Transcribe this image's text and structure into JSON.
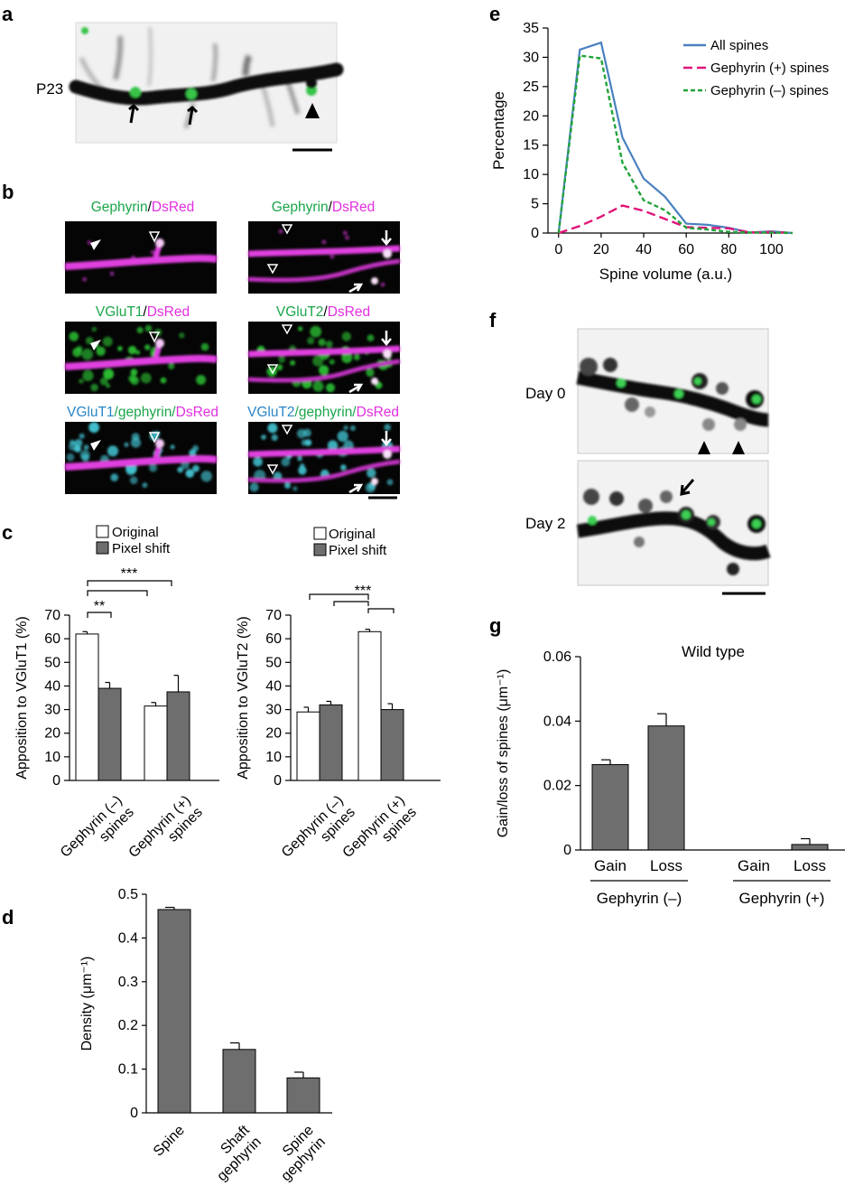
{
  "panels": {
    "a": {
      "letter": "a",
      "label": "P23"
    },
    "b": {
      "letter": "b",
      "rows": [
        [
          "Gephyrin",
          "/",
          "DsRed"
        ],
        [
          "VGluT1",
          "/",
          "DsRed"
        ],
        [
          "VGluT1",
          "/gephyrin/",
          "DsRed"
        ]
      ],
      "rows_right": [
        [
          "Gephyrin",
          "/",
          "DsRed"
        ],
        [
          "VGluT2",
          "/",
          "DsRed"
        ],
        [
          "VGluT2",
          "/gephyrin/",
          "DsRed"
        ]
      ]
    },
    "c": {
      "letter": "c",
      "legend": [
        "Original",
        "Pixel shift"
      ],
      "sig_2": "**",
      "sig_3": "***"
    },
    "d": {
      "letter": "d"
    },
    "e": {
      "letter": "e"
    },
    "f": {
      "letter": "f",
      "labels": [
        "Day 0",
        "Day 2"
      ]
    },
    "g": {
      "letter": "g"
    }
  },
  "colors": {
    "green": "#1aa64a",
    "magenta": "#e22ee0",
    "cyan": "#2a86c8",
    "bar_original": "#ffffff",
    "bar_shift": "#6e6e6e",
    "all_spines": "#4a80c0",
    "geph_pos": "#e0157a",
    "geph_neg": "#22a33a"
  },
  "chart_data": [
    {
      "id": "c-left",
      "type": "bar",
      "ylabel": "Apposition to VGluT1 (%)",
      "ylim": [
        0,
        70
      ],
      "yticks": [
        0,
        10,
        20,
        30,
        40,
        50,
        60,
        70
      ],
      "categories": [
        "Gephyrin (–)\nspines",
        "Gephyrin (+)\nspines"
      ],
      "series": [
        {
          "name": "Original",
          "values": [
            62,
            31.5
          ],
          "errors": [
            1,
            1.5
          ]
        },
        {
          "name": "Pixel shift",
          "values": [
            39,
            37.5
          ],
          "errors": [
            2.5,
            7
          ]
        }
      ]
    },
    {
      "id": "c-right",
      "type": "bar",
      "ylabel": "Apposition to VGluT2 (%)",
      "ylim": [
        0,
        70
      ],
      "yticks": [
        0,
        10,
        20,
        30,
        40,
        50,
        60,
        70
      ],
      "categories": [
        "Gephyrin (–)\nspines",
        "Gephyrin (+)\nspines"
      ],
      "series": [
        {
          "name": "Original",
          "values": [
            29,
            63
          ],
          "errors": [
            2,
            1
          ]
        },
        {
          "name": "Pixel shift",
          "values": [
            32,
            30
          ],
          "errors": [
            1.5,
            2.5
          ]
        }
      ]
    },
    {
      "id": "d",
      "type": "bar",
      "ylabel": "Density (μm⁻¹)",
      "ylim": [
        0,
        0.5
      ],
      "yticks": [
        0,
        0.1,
        0.2,
        0.3,
        0.4,
        0.5
      ],
      "ytick_labels": [
        "0",
        "0.1",
        "0.2",
        "0.3",
        "0.4",
        "0.5"
      ],
      "categories": [
        "Spine",
        "Shaft\ngephyrin",
        "Spine\ngephyrin"
      ],
      "values": [
        0.465,
        0.145,
        0.08
      ],
      "errors": [
        0.005,
        0.015,
        0.013
      ]
    },
    {
      "id": "e",
      "type": "line",
      "xlabel": "Spine volume (a.u.)",
      "ylabel": "Percentage",
      "xlim": [
        -5,
        110
      ],
      "ylim": [
        0,
        35
      ],
      "xticks": [
        0,
        20,
        40,
        60,
        80,
        100
      ],
      "yticks": [
        0,
        5,
        10,
        15,
        20,
        25,
        30,
        35
      ],
      "legend_position": "top-right",
      "series": [
        {
          "name": "All spines",
          "x": [
            0,
            10,
            20,
            30,
            40,
            50,
            60,
            70,
            80,
            90,
            100,
            110
          ],
          "y": [
            0,
            31.3,
            32.5,
            16.3,
            9.3,
            6.2,
            1.6,
            1.4,
            0.9,
            0.1,
            0.3,
            0
          ]
        },
        {
          "name": "Gephyrin (+) spines",
          "x": [
            0,
            10,
            20,
            30,
            40,
            50,
            60,
            70,
            80,
            90,
            100,
            110
          ],
          "y": [
            0,
            1.2,
            2.8,
            4.7,
            3.8,
            2.4,
            1.0,
            0.9,
            0.8,
            0.1,
            0.2,
            0
          ]
        },
        {
          "name": "Gephyrin (–) spines",
          "x": [
            0,
            10,
            20,
            30,
            40,
            50,
            60,
            70,
            80,
            90,
            100,
            110
          ],
          "y": [
            0,
            30.3,
            29.8,
            12.0,
            5.6,
            3.9,
            0.9,
            0.6,
            0.2,
            0.1,
            0.1,
            0
          ]
        }
      ]
    },
    {
      "id": "g",
      "type": "bar",
      "title": "Wild type",
      "ylabel": "Gain/loss of spines (μm⁻¹)",
      "ylim": [
        0,
        0.06
      ],
      "yticks": [
        0,
        0.02,
        0.04,
        0.06
      ],
      "ytick_labels": [
        "0",
        "0.02",
        "0.04",
        "0.06"
      ],
      "categories": [
        "Gain",
        "Loss",
        "Gain",
        "Loss"
      ],
      "groups": [
        "Gephyrin (–)",
        "Gephyrin (+)"
      ],
      "values": [
        0.0265,
        0.0385,
        0,
        0.0017
      ],
      "errors": [
        0.0015,
        0.0038,
        0,
        0.0018
      ]
    }
  ]
}
